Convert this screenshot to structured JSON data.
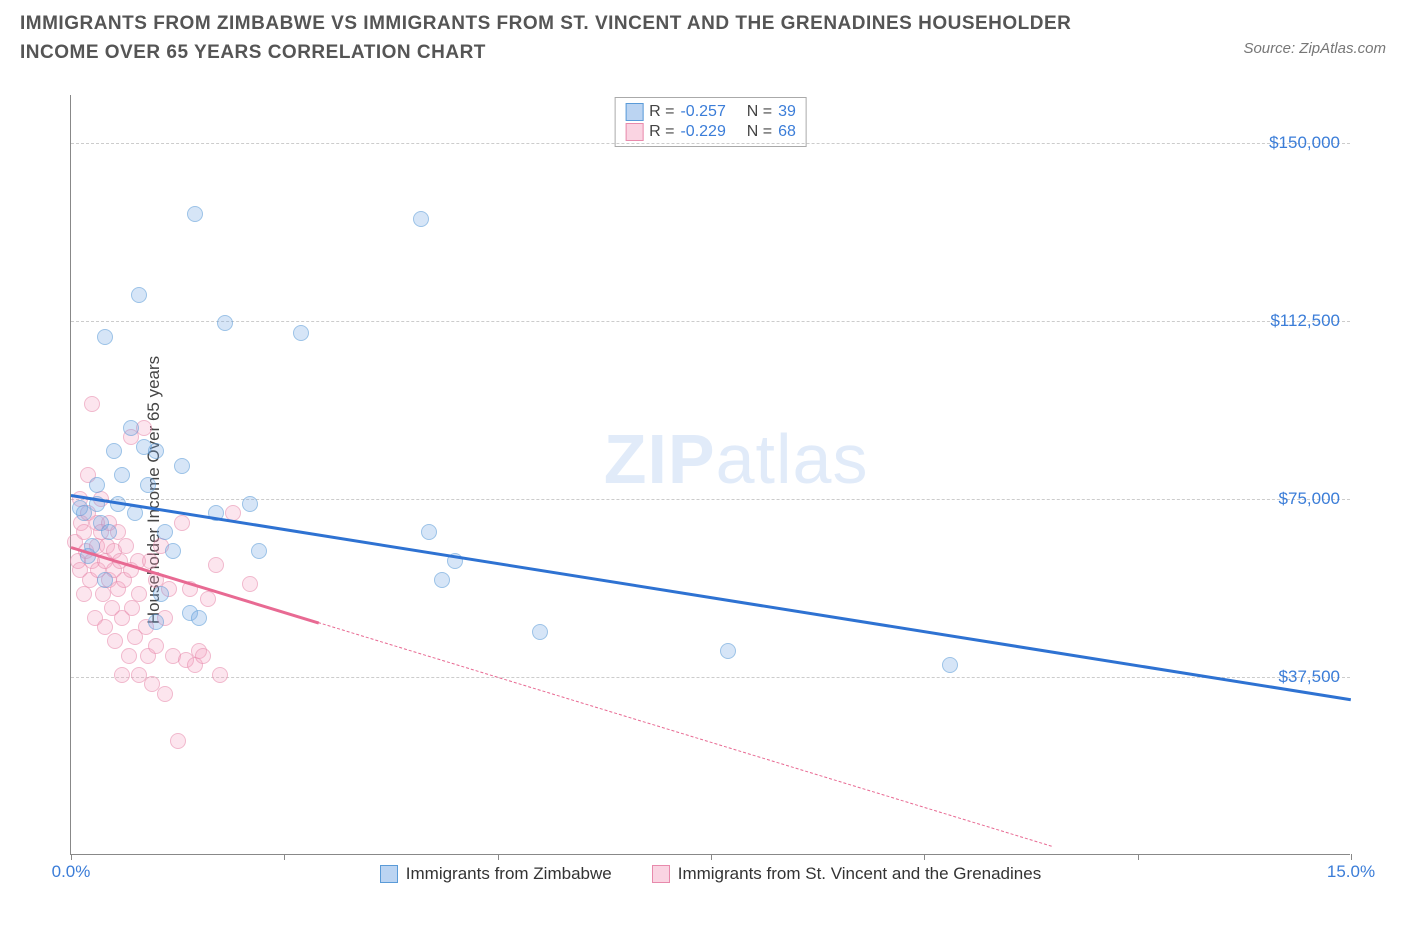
{
  "title": "IMMIGRANTS FROM ZIMBABWE VS IMMIGRANTS FROM ST. VINCENT AND THE GRENADINES HOUSEHOLDER INCOME OVER 65 YEARS CORRELATION CHART",
  "source": "Source: ZipAtlas.com",
  "watermark_zip": "ZIP",
  "watermark_atlas": "atlas",
  "y_axis_label": "Householder Income Over 65 years",
  "chart": {
    "type": "scatter",
    "xlim": [
      0,
      15
    ],
    "ylim": [
      0,
      160000
    ],
    "x_ticks_minor": [
      0,
      2.5,
      5,
      7.5,
      10,
      12.5,
      15
    ],
    "x_tick_labels": [
      {
        "x": 0,
        "label": "0.0%"
      },
      {
        "x": 15,
        "label": "15.0%"
      }
    ],
    "y_gridlines": [
      37500,
      75000,
      112500,
      150000
    ],
    "y_tick_labels": [
      {
        "y": 37500,
        "label": "$37,500"
      },
      {
        "y": 75000,
        "label": "$75,000"
      },
      {
        "y": 112500,
        "label": "$112,500"
      },
      {
        "y": 150000,
        "label": "$150,000"
      }
    ],
    "background_color": "#ffffff",
    "grid_color": "#cccccc",
    "axis_color": "#888888",
    "tick_label_color": "#3b7dd8"
  },
  "series": {
    "blue": {
      "label": "Immigrants from Zimbabwe",
      "fill_color": "rgba(120,170,230,0.5)",
      "stroke_color": "#5a9bd8",
      "trend_color": "#2e72d2",
      "R": "-0.257",
      "N": "39",
      "trend": {
        "x1": 0,
        "y1": 76000,
        "x2": 15,
        "y2": 33000,
        "solid_until_x": 15
      },
      "points": [
        [
          0.1,
          73000
        ],
        [
          0.15,
          72000
        ],
        [
          0.2,
          63000
        ],
        [
          0.25,
          65000
        ],
        [
          0.3,
          74000
        ],
        [
          0.3,
          78000
        ],
        [
          0.35,
          70000
        ],
        [
          0.4,
          109000
        ],
        [
          0.4,
          58000
        ],
        [
          0.45,
          68000
        ],
        [
          0.5,
          85000
        ],
        [
          0.55,
          74000
        ],
        [
          0.6,
          80000
        ],
        [
          0.7,
          90000
        ],
        [
          0.75,
          72000
        ],
        [
          0.8,
          118000
        ],
        [
          0.85,
          86000
        ],
        [
          0.9,
          78000
        ],
        [
          1.0,
          85000
        ],
        [
          1.05,
          55000
        ],
        [
          1.1,
          68000
        ],
        [
          1.2,
          64000
        ],
        [
          1.3,
          82000
        ],
        [
          1.4,
          51000
        ],
        [
          1.45,
          135000
        ],
        [
          1.5,
          50000
        ],
        [
          1.7,
          72000
        ],
        [
          1.8,
          112000
        ],
        [
          2.2,
          64000
        ],
        [
          2.1,
          74000
        ],
        [
          2.7,
          110000
        ],
        [
          4.1,
          134000
        ],
        [
          4.2,
          68000
        ],
        [
          4.35,
          58000
        ],
        [
          4.5,
          62000
        ],
        [
          5.5,
          47000
        ],
        [
          7.7,
          43000
        ],
        [
          10.3,
          40000
        ],
        [
          1.0,
          49000
        ]
      ]
    },
    "pink": {
      "label": "Immigrants from St. Vincent and the Grenadines",
      "fill_color": "rgba(245,160,190,0.45)",
      "stroke_color": "#e88aac",
      "trend_color": "#e86a93",
      "R": "-0.229",
      "N": "68",
      "trend": {
        "x1": 0,
        "y1": 65000,
        "x2": 11.5,
        "y2": 2000,
        "solid_until_x": 2.9
      },
      "points": [
        [
          0.05,
          66000
        ],
        [
          0.08,
          62000
        ],
        [
          0.1,
          75000
        ],
        [
          0.1,
          60000
        ],
        [
          0.12,
          70000
        ],
        [
          0.15,
          68000
        ],
        [
          0.15,
          55000
        ],
        [
          0.18,
          64000
        ],
        [
          0.2,
          80000
        ],
        [
          0.2,
          72000
        ],
        [
          0.22,
          58000
        ],
        [
          0.25,
          95000
        ],
        [
          0.25,
          62000
        ],
        [
          0.28,
          50000
        ],
        [
          0.3,
          70000
        ],
        [
          0.3,
          65000
        ],
        [
          0.32,
          60000
        ],
        [
          0.35,
          68000
        ],
        [
          0.35,
          75000
        ],
        [
          0.38,
          55000
        ],
        [
          0.4,
          62000
        ],
        [
          0.4,
          48000
        ],
        [
          0.42,
          65000
        ],
        [
          0.45,
          58000
        ],
        [
          0.45,
          70000
        ],
        [
          0.48,
          52000
        ],
        [
          0.5,
          64000
        ],
        [
          0.5,
          60000
        ],
        [
          0.52,
          45000
        ],
        [
          0.55,
          68000
        ],
        [
          0.55,
          56000
        ],
        [
          0.58,
          62000
        ],
        [
          0.6,
          50000
        ],
        [
          0.6,
          38000
        ],
        [
          0.62,
          58000
        ],
        [
          0.65,
          65000
        ],
        [
          0.68,
          42000
        ],
        [
          0.7,
          88000
        ],
        [
          0.7,
          60000
        ],
        [
          0.72,
          52000
        ],
        [
          0.75,
          46000
        ],
        [
          0.78,
          62000
        ],
        [
          0.8,
          38000
        ],
        [
          0.8,
          55000
        ],
        [
          0.85,
          90000
        ],
        [
          0.88,
          48000
        ],
        [
          0.9,
          42000
        ],
        [
          0.92,
          62000
        ],
        [
          0.95,
          36000
        ],
        [
          1.0,
          58000
        ],
        [
          1.0,
          44000
        ],
        [
          1.05,
          65000
        ],
        [
          1.1,
          50000
        ],
        [
          1.1,
          34000
        ],
        [
          1.15,
          56000
        ],
        [
          1.2,
          42000
        ],
        [
          1.25,
          24000
        ],
        [
          1.3,
          70000
        ],
        [
          1.35,
          41000
        ],
        [
          1.4,
          56000
        ],
        [
          1.45,
          40000
        ],
        [
          1.5,
          43000
        ],
        [
          1.55,
          42000
        ],
        [
          1.6,
          54000
        ],
        [
          1.7,
          61000
        ],
        [
          1.75,
          38000
        ],
        [
          1.9,
          72000
        ],
        [
          2.1,
          57000
        ]
      ]
    }
  },
  "legend_top": {
    "r_label": "R =",
    "n_label": "N ="
  }
}
